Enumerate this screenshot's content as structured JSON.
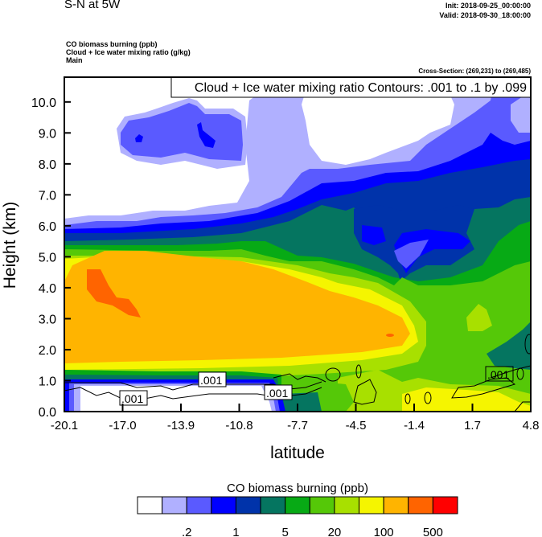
{
  "header": {
    "title": "S-N at 5W",
    "init": "Init: 2018-09-25_00:00:00",
    "valid": "Valid: 2018-09-30_18:00:00",
    "field_lines": [
      "CO biomass burning   (ppb)",
      "Cloud + Ice water mixing ratio   (g/kg)",
      "Main"
    ],
    "cross_section": "Cross-Section: (269,231) to (269,485)"
  },
  "chart_data": {
    "type": "heatmap",
    "subtype": "filled contour cross-section with line contour overlay",
    "contour_title": "Cloud + Ice water mixing ratio Contours: .001 to .1 by .099",
    "xlabel": "latitude",
    "ylabel": "Height (km)",
    "xlim": [
      -20.1,
      4.8
    ],
    "ylim": [
      0.0,
      10.8
    ],
    "x_ticks": [
      "-20.1",
      "-17.0",
      "-13.9",
      "-10.8",
      "-7.7",
      "-4.5",
      "-1.4",
      "1.7",
      "4.8"
    ],
    "y_ticks": [
      "0.0",
      "1.0",
      "2.0",
      "3.0",
      "4.0",
      "5.0",
      "6.0",
      "7.0",
      "8.0",
      "9.0",
      "10.0"
    ],
    "contour_labels": [
      ".001",
      ".001",
      ".001",
      ".001"
    ],
    "colorbar": {
      "title": "CO biomass burning  (ppb)",
      "labels": [
        ".2",
        "1",
        "5",
        "20",
        "100",
        "500"
      ],
      "colors": [
        "#ffffff",
        "#b0b0ff",
        "#5a5aff",
        "#0000ff",
        "#0033aa",
        "#057560",
        "#07aa15",
        "#55c808",
        "#a8e000",
        "#f5f500",
        "#ffb400",
        "#ff6400",
        "#ff0000"
      ]
    }
  }
}
